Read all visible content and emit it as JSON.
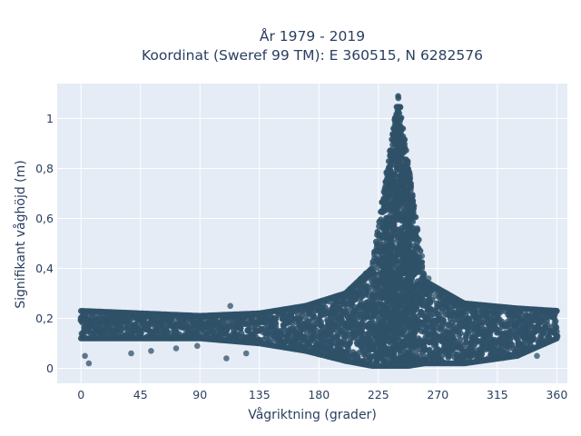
{
  "chart_data": {
    "type": "scatter",
    "title_line1": "År 1979 - 2019",
    "title_line2": "Koordinat (Sweref 99 TM): E 360515, N 6282576",
    "xlabel": "Vågriktning (grader)",
    "ylabel": "Signifikant våghöjd (m)",
    "xlim": [
      -18,
      368
    ],
    "ylim": [
      -0.06,
      1.14
    ],
    "xticks": [
      0,
      45,
      90,
      135,
      180,
      225,
      270,
      315,
      360
    ],
    "xtick_labels": [
      "0",
      "45",
      "90",
      "135",
      "180",
      "225",
      "270",
      "315",
      "360"
    ],
    "yticks": [
      0,
      0.2,
      0.4,
      0.6,
      0.8,
      1
    ],
    "ytick_labels": [
      "0",
      "0,2",
      "0,4",
      "0,6",
      "0,8",
      "1"
    ],
    "grid": true,
    "marker_color": "#2f5168",
    "plot_background": "#e5ecf6",
    "envelope": [
      {
        "dir": 0,
        "lo": 0.12,
        "hi": 0.23
      },
      {
        "dir": 45,
        "lo": 0.12,
        "hi": 0.22
      },
      {
        "dir": 90,
        "lo": 0.12,
        "hi": 0.21
      },
      {
        "dir": 135,
        "lo": 0.1,
        "hi": 0.22
      },
      {
        "dir": 170,
        "lo": 0.07,
        "hi": 0.25
      },
      {
        "dir": 200,
        "lo": 0.03,
        "hi": 0.3
      },
      {
        "dir": 220,
        "lo": 0.01,
        "hi": 0.4
      },
      {
        "dir": 232,
        "lo": 0.01,
        "hi": 0.8
      },
      {
        "dir": 240,
        "lo": 0.01,
        "hi": 1.09
      },
      {
        "dir": 248,
        "lo": 0.01,
        "hi": 0.8
      },
      {
        "dir": 260,
        "lo": 0.02,
        "hi": 0.35
      },
      {
        "dir": 290,
        "lo": 0.02,
        "hi": 0.26
      },
      {
        "dir": 330,
        "lo": 0.05,
        "hi": 0.24
      },
      {
        "dir": 360,
        "lo": 0.12,
        "hi": 0.23
      }
    ],
    "outliers": [
      {
        "x": 3,
        "y": 0.05
      },
      {
        "x": 6,
        "y": 0.02
      },
      {
        "x": 38,
        "y": 0.06
      },
      {
        "x": 53,
        "y": 0.07
      },
      {
        "x": 72,
        "y": 0.08
      },
      {
        "x": 88,
        "y": 0.09
      },
      {
        "x": 110,
        "y": 0.04
      },
      {
        "x": 113,
        "y": 0.25
      },
      {
        "x": 125,
        "y": 0.06
      },
      {
        "x": 258,
        "y": 0.45
      },
      {
        "x": 263,
        "y": 0.36
      },
      {
        "x": 268,
        "y": 0.29
      },
      {
        "x": 345,
        "y": 0.05
      },
      {
        "x": 352,
        "y": 0.16
      }
    ]
  }
}
